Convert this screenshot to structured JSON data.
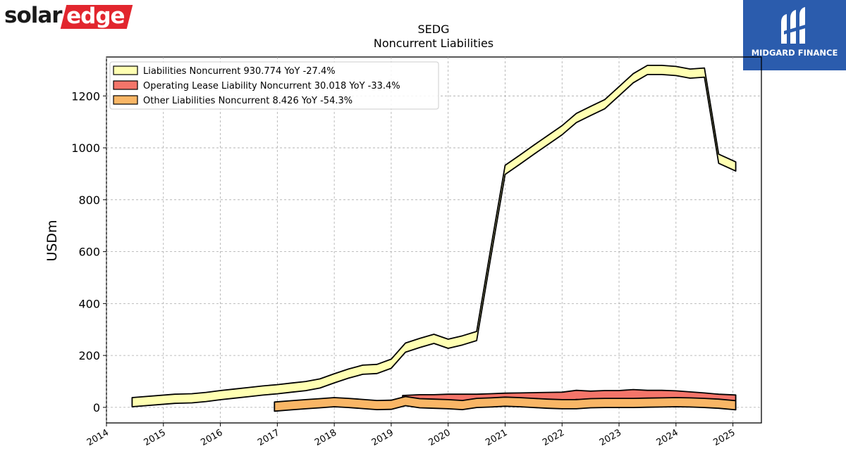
{
  "logos": {
    "left_part1": "solar",
    "left_part2": "edge",
    "right_text": "MIDGARD FINANCE"
  },
  "chart_data": {
    "type": "area",
    "title": "SEDG",
    "subtitle": "Noncurrent  Liabilities",
    "ylabel": "USDm",
    "xlabel": "",
    "xlim": [
      2014.0,
      2025.5
    ],
    "ylim": [
      -60,
      1350
    ],
    "yticks": [
      0,
      200,
      400,
      600,
      800,
      1000,
      1200
    ],
    "xticks": [
      "2014",
      "2015",
      "2016",
      "2017",
      "2018",
      "2019",
      "2020",
      "2021",
      "2022",
      "2023",
      "2024",
      "2025"
    ],
    "grid": true,
    "legend_position": "top-left",
    "series": [
      {
        "name": "Liabilities Noncurrent",
        "legend": "Liabilities Noncurrent  930.774 YoY -27.4%",
        "color": "#ffffb2",
        "x": [
          2014.45,
          2015.2,
          2015.5,
          2015.75,
          2016.0,
          2016.25,
          2016.5,
          2016.75,
          2017.0,
          2017.25,
          2017.5,
          2017.75,
          2018.0,
          2018.25,
          2018.5,
          2018.75,
          2019.0,
          2019.25,
          2019.5,
          2019.75,
          2020.0,
          2020.25,
          2020.5,
          2020.75,
          2021.0,
          2021.25,
          2021.5,
          2021.75,
          2022.0,
          2022.25,
          2022.5,
          2022.75,
          2023.0,
          2023.25,
          2023.5,
          2023.75,
          2024.0,
          2024.25,
          2024.5,
          2024.75,
          2025.05
        ],
        "values": [
          20,
          33,
          35,
          40,
          47,
          53,
          59,
          65,
          70,
          76,
          82,
          92,
          112,
          130,
          145,
          148,
          168,
          230,
          248,
          264,
          245,
          258,
          275,
          598,
          915,
          953,
          992,
          1030,
          1068,
          1115,
          1142,
          1168,
          1218,
          1268,
          1300,
          1300,
          1296,
          1286,
          1290,
          958,
          928
        ]
      },
      {
        "name": "Operating Lease Liability Noncurrent",
        "legend": "Operating Lease Liability Noncurrent  30.018 YoY -33.4%",
        "color": "#f4756a",
        "x": [
          2019.2,
          2019.5,
          2019.75,
          2020.0,
          2020.25,
          2020.5,
          2020.75,
          2021.0,
          2021.25,
          2021.5,
          2021.75,
          2022.0,
          2022.25,
          2022.5,
          2022.75,
          2023.0,
          2023.25,
          2023.5,
          2023.75,
          2024.0,
          2024.25,
          2024.5,
          2024.75,
          2025.05
        ],
        "values": [
          28,
          31,
          31,
          33,
          33,
          33,
          35,
          37,
          38,
          39,
          40,
          41,
          48,
          45,
          47,
          47,
          51,
          48,
          48,
          46,
          42,
          38,
          33,
          30
        ]
      },
      {
        "name": "Other Liabilities Noncurrent",
        "legend": "Other Liabilities Noncurrent  8.426 YoY -54.3%",
        "color": "#f9b666",
        "x": [
          2016.95,
          2017.25,
          2017.5,
          2017.75,
          2018.0,
          2018.25,
          2018.5,
          2018.75,
          2019.0,
          2019.25,
          2019.5,
          2019.75,
          2020.0,
          2020.25,
          2020.5,
          2020.75,
          2021.0,
          2021.25,
          2021.5,
          2021.75,
          2022.0,
          2022.25,
          2022.5,
          2022.75,
          2023.0,
          2023.25,
          2023.5,
          2023.75,
          2024.0,
          2024.25,
          2024.5,
          2024.75,
          2025.05
        ],
        "values": [
          3,
          8,
          12,
          16,
          20,
          17,
          13,
          9,
          10,
          24,
          16,
          14,
          12,
          9,
          17,
          19,
          22,
          20,
          17,
          14,
          12,
          12,
          16,
          17,
          17,
          17,
          18,
          19,
          20,
          19,
          17,
          14,
          8
        ]
      }
    ]
  }
}
